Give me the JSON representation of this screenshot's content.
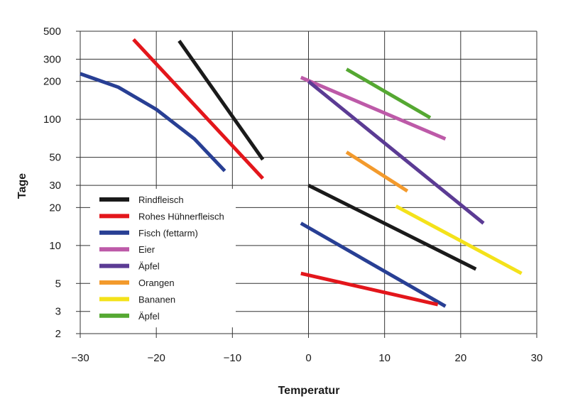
{
  "chart_data": {
    "type": "line",
    "xlabel": "Temperatur",
    "ylabel": "Tage",
    "xlim": [
      -30,
      30
    ],
    "ylim": [
      2,
      500
    ],
    "y_scale": "log",
    "x_ticks": [
      -30,
      -20,
      -10,
      0,
      10,
      20,
      30
    ],
    "x_tick_labels": [
      "−30",
      "−20",
      "−10",
      "0",
      "10",
      "20",
      "30"
    ],
    "y_ticks": [
      2,
      3,
      5,
      10,
      20,
      30,
      50,
      100,
      200,
      300,
      500
    ],
    "y_tick_labels": [
      "2",
      "3",
      "5",
      "10",
      "20",
      "30",
      "50",
      "100",
      "200",
      "300",
      "500"
    ],
    "grid": true,
    "legend_position": "lower-left",
    "series": [
      {
        "name": "Rindfleisch",
        "color": "#1a1a1a",
        "x": [
          -17,
          -6
        ],
        "y": [
          420,
          48
        ]
      },
      {
        "name": "Rohes Hühnerfleisch",
        "color": "#e3161b",
        "x": [
          -23,
          -6
        ],
        "y": [
          430,
          34
        ]
      },
      {
        "name": "Fisch (fettarm)",
        "color": "#283f94",
        "x": [
          -30,
          -25,
          -20,
          -15,
          -11
        ],
        "y": [
          230,
          180,
          120,
          70,
          39
        ]
      },
      {
        "name": "Eier",
        "color": "#bd5aa8",
        "x": [
          -1,
          18
        ],
        "y": [
          215,
          70
        ]
      },
      {
        "name": "Äpfel",
        "color": "#5b3b94",
        "x": [
          0,
          23
        ],
        "y": [
          200,
          15
        ]
      },
      {
        "name": "Orangen",
        "color": "#f39a2c",
        "x": [
          5,
          13
        ],
        "y": [
          55,
          27
        ]
      },
      {
        "name": "Bananen",
        "color": "#f4e21a",
        "x": [
          11.5,
          28
        ],
        "y": [
          20.5,
          6
        ]
      },
      {
        "name": "Äpfel",
        "color": "#55a832",
        "x": [
          5,
          16
        ],
        "y": [
          250,
          103
        ]
      },
      {
        "name": "",
        "color": "#1a1a1a",
        "x": [
          0,
          22
        ],
        "y": [
          30,
          6.5
        ]
      },
      {
        "name": "",
        "color": "#283f94",
        "x": [
          -1,
          18
        ],
        "y": [
          15,
          3.3
        ]
      },
      {
        "name": "",
        "color": "#e3161b",
        "x": [
          -1,
          17
        ],
        "y": [
          6,
          3.4
        ]
      }
    ]
  }
}
